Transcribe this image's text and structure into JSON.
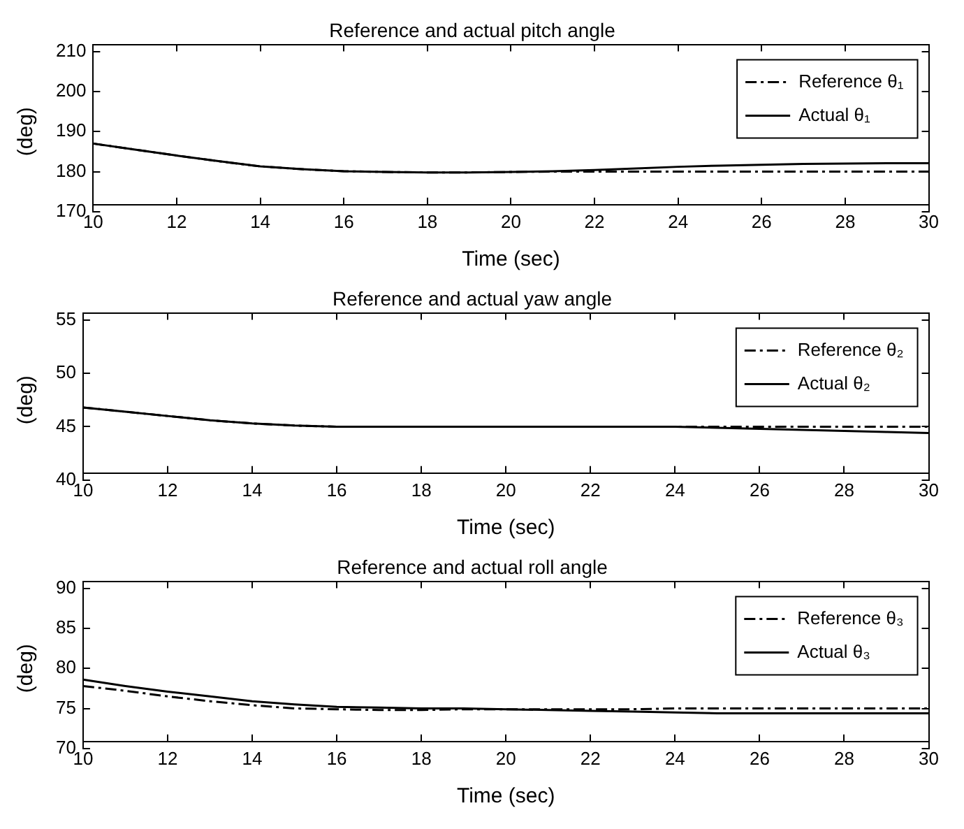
{
  "chart_data": [
    {
      "type": "line",
      "title": "Reference and actual pitch angle",
      "xlabel": "Time (sec)",
      "ylabel": "(deg)",
      "x": [
        10,
        11,
        12,
        13,
        14,
        15,
        16,
        17,
        18,
        19,
        20,
        21,
        22,
        23,
        24,
        25,
        26,
        27,
        28,
        29,
        30
      ],
      "xlim": [
        10,
        30
      ],
      "xticks": [
        10,
        12,
        14,
        16,
        18,
        20,
        22,
        24,
        26,
        28,
        30
      ],
      "ylim": [
        170,
        210
      ],
      "yticks": [
        170,
        180,
        190,
        200,
        210
      ],
      "legend": "top right",
      "grid": false,
      "marker": "none",
      "series": [
        {
          "name": "Reference θ₁",
          "color": "#000000",
          "line_style": "dashdot",
          "values": [
            187,
            185.5,
            184,
            182.6,
            181.3,
            180.6,
            180.1,
            179.9,
            179.8,
            179.8,
            179.9,
            180,
            180,
            180,
            180,
            180,
            180,
            180,
            180,
            180,
            180
          ]
        },
        {
          "name": "Actual θ₁",
          "color": "#000000",
          "line_style": "solid",
          "values": [
            187,
            185.5,
            184,
            182.6,
            181.3,
            180.6,
            180.1,
            179.9,
            179.8,
            179.8,
            179.9,
            180.1,
            180.4,
            180.8,
            181.2,
            181.5,
            181.7,
            181.9,
            182,
            182.1,
            182.1
          ]
        }
      ]
    },
    {
      "type": "line",
      "title": "Reference and actual yaw angle",
      "xlabel": "Time (sec)",
      "ylabel": "(deg)",
      "x": [
        10,
        11,
        12,
        13,
        14,
        15,
        16,
        17,
        18,
        19,
        20,
        21,
        22,
        23,
        24,
        25,
        26,
        27,
        28,
        29,
        30
      ],
      "xlim": [
        10,
        30
      ],
      "xticks": [
        10,
        12,
        14,
        16,
        18,
        20,
        22,
        24,
        26,
        28,
        30
      ],
      "ylim": [
        40,
        55
      ],
      "yticks": [
        40,
        45,
        50,
        55
      ],
      "legend": "top right",
      "grid": false,
      "marker": "none",
      "series": [
        {
          "name": "Reference θ₂",
          "color": "#000000",
          "line_style": "dashdot",
          "values": [
            46.8,
            46.4,
            46,
            45.6,
            45.3,
            45.1,
            45,
            45,
            45,
            45,
            45,
            45,
            45,
            45,
            45,
            45,
            45,
            45,
            45,
            45,
            45
          ]
        },
        {
          "name": "Actual θ₂",
          "color": "#000000",
          "line_style": "solid",
          "values": [
            46.8,
            46.4,
            46,
            45.6,
            45.3,
            45.1,
            45,
            45,
            45,
            45,
            45,
            45,
            45,
            45,
            45,
            44.9,
            44.8,
            44.7,
            44.6,
            44.5,
            44.4
          ]
        }
      ]
    },
    {
      "type": "line",
      "title": "Reference and actual roll angle",
      "xlabel": "Time (sec)",
      "ylabel": "(deg)",
      "x": [
        10,
        11,
        12,
        13,
        14,
        15,
        16,
        17,
        18,
        19,
        20,
        21,
        22,
        23,
        24,
        25,
        26,
        27,
        28,
        29,
        30
      ],
      "xlim": [
        10,
        30
      ],
      "xticks": [
        10,
        12,
        14,
        16,
        18,
        20,
        22,
        24,
        26,
        28,
        30
      ],
      "ylim": [
        70,
        90
      ],
      "yticks": [
        70,
        75,
        80,
        85,
        90
      ],
      "legend": "top right",
      "grid": false,
      "marker": "none",
      "series": [
        {
          "name": "Reference θ₃",
          "color": "#000000",
          "line_style": "dashdot",
          "values": [
            77.8,
            77.2,
            76.5,
            75.9,
            75.4,
            75,
            74.9,
            74.8,
            74.8,
            74.9,
            74.9,
            74.9,
            74.9,
            74.9,
            75,
            75,
            75,
            75,
            75,
            75,
            75
          ]
        },
        {
          "name": "Actual θ₃",
          "color": "#000000",
          "line_style": "solid",
          "values": [
            78.6,
            77.8,
            77.1,
            76.5,
            75.9,
            75.5,
            75.2,
            75.1,
            75,
            75,
            74.9,
            74.8,
            74.7,
            74.6,
            74.5,
            74.4,
            74.4,
            74.4,
            74.4,
            74.4,
            74.4
          ]
        }
      ]
    }
  ]
}
